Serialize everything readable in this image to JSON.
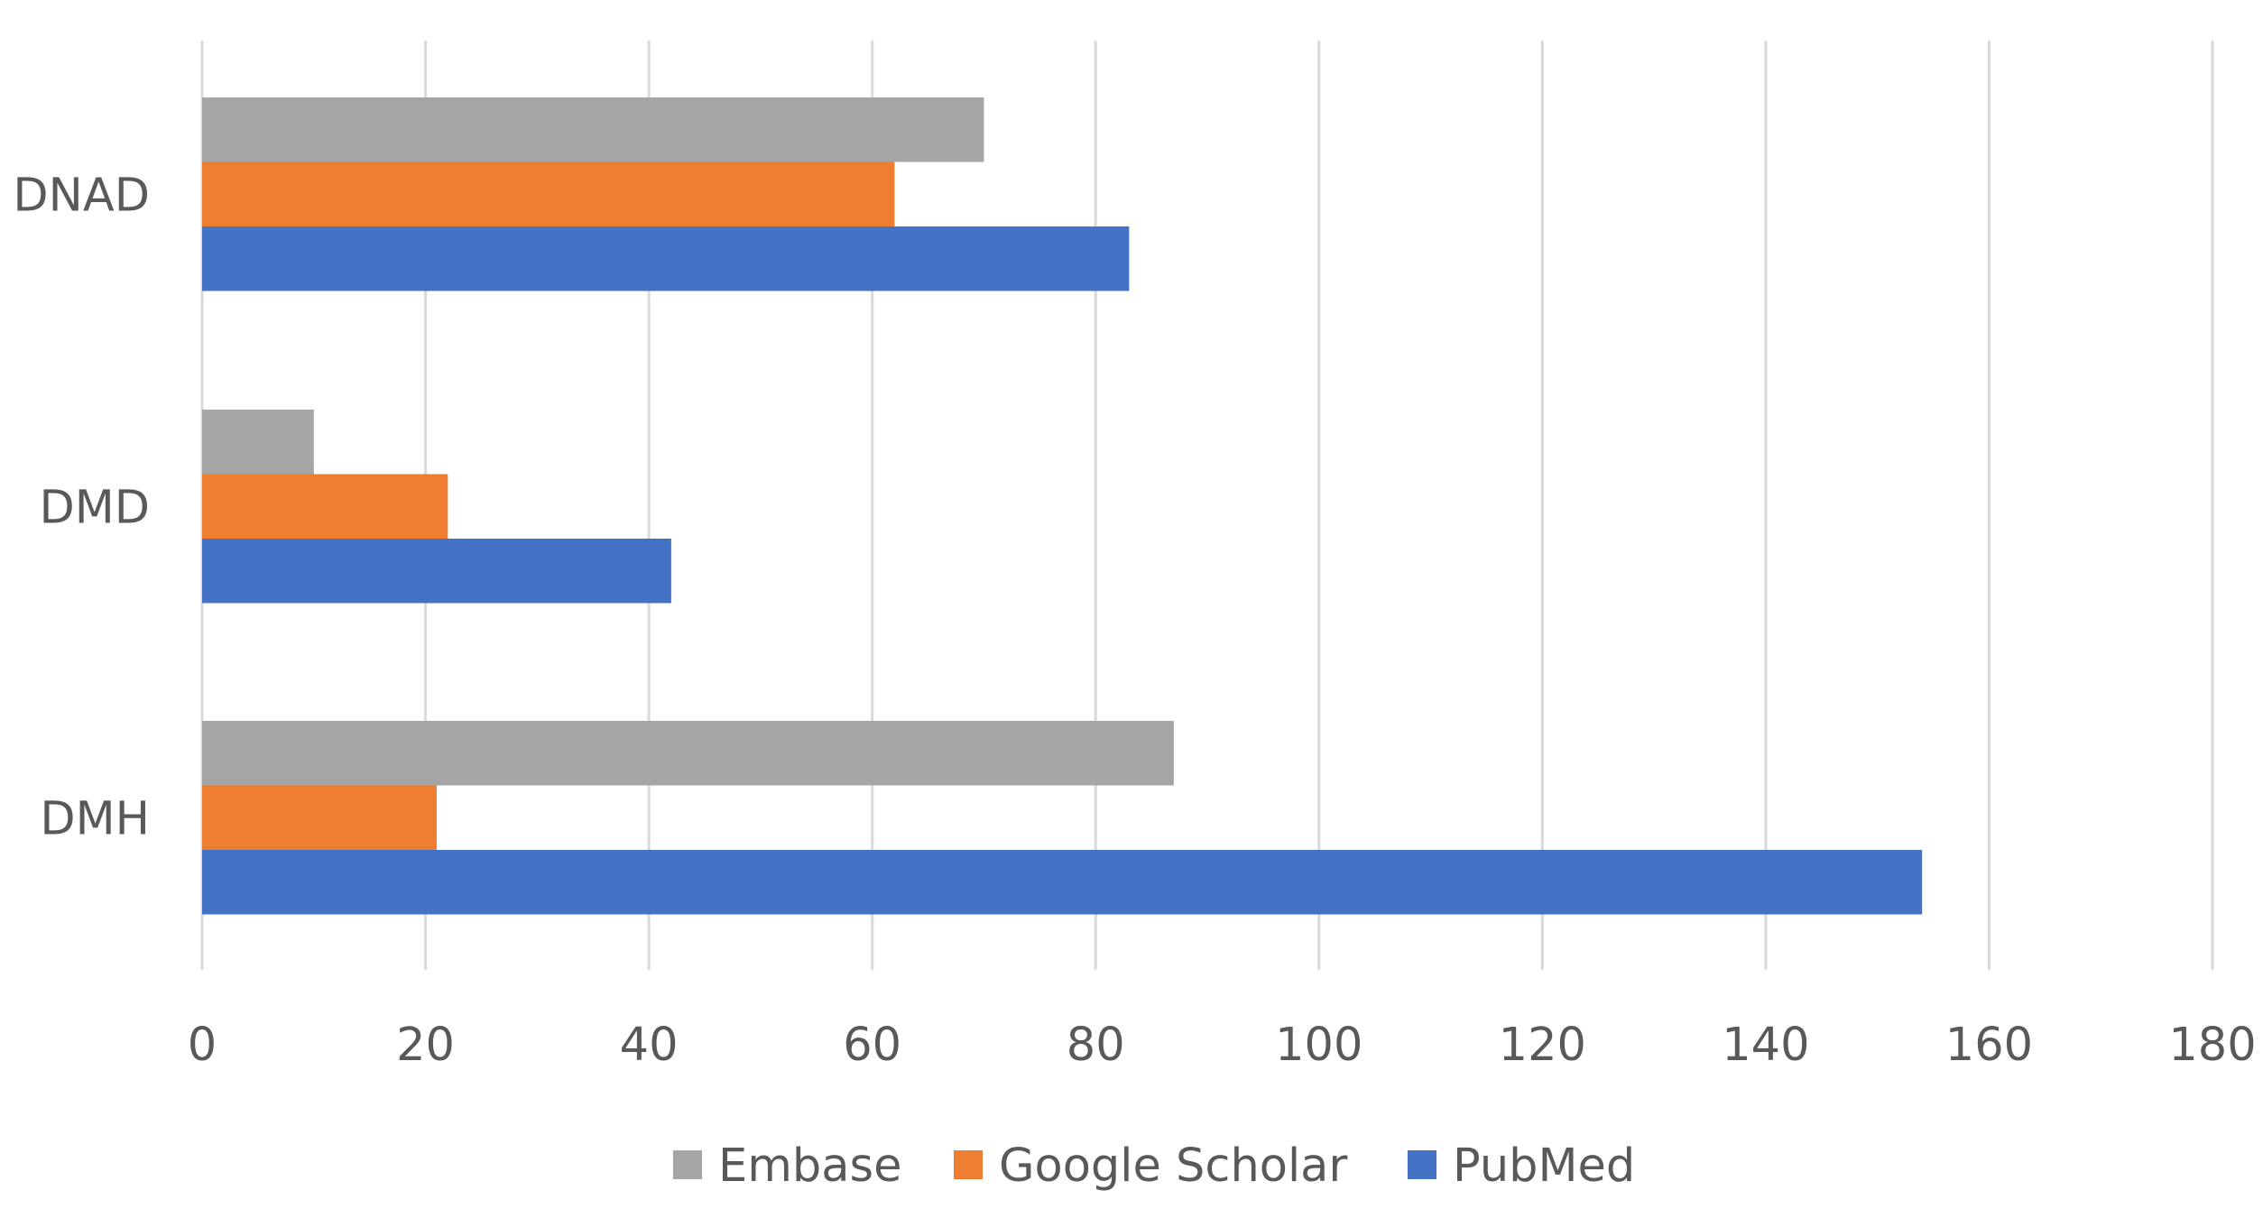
{
  "chart_data": {
    "type": "bar",
    "orientation": "horizontal",
    "categories": [
      "DNAD",
      "DMD",
      "DMH"
    ],
    "series": [
      {
        "name": "Embase",
        "color": "#a5a5a5",
        "values": [
          70,
          10,
          87
        ]
      },
      {
        "name": "Google Scholar",
        "color": "#ed7d31",
        "values": [
          62,
          22,
          21
        ]
      },
      {
        "name": "PubMed",
        "color": "#4472c4",
        "values": [
          83,
          42,
          154
        ]
      }
    ],
    "xlim": [
      0,
      180
    ],
    "x_ticks": [
      "0",
      "20",
      "40",
      "60",
      "80",
      "100",
      "120",
      "140",
      "160",
      "180"
    ],
    "grid": "vertical",
    "legend_position": "bottom",
    "title": "",
    "xlabel": "",
    "ylabel": ""
  }
}
